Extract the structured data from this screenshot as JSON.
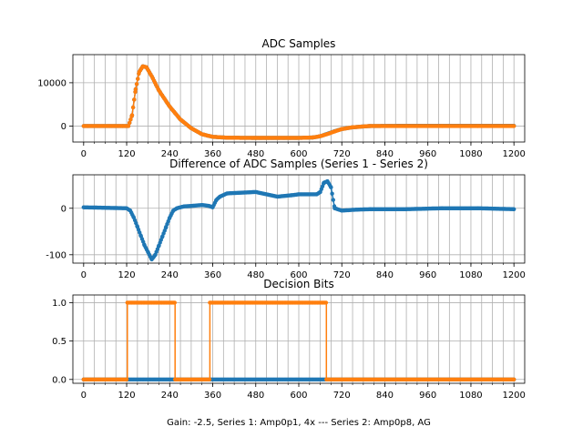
{
  "figure_xlabel": "Gain: -2.5, Series 1: Amp0p1, 4x --- Series 2: Amp0p8, AG",
  "colors": {
    "series1": "#1f77b4",
    "series2": "#ff7f0e",
    "grid": "#b0b0b0"
  },
  "chart_data": [
    {
      "type": "scatter",
      "title": "ADC Samples",
      "xlim": [
        -30,
        1230
      ],
      "ylim": [
        -3700,
        16500
      ],
      "xticks": [
        0,
        120,
        240,
        360,
        480,
        600,
        720,
        840,
        960,
        1080,
        1200
      ],
      "yticks": [
        0,
        10000
      ],
      "series": [
        {
          "name": "Series 1",
          "color": "#1f77b4",
          "connected": true,
          "points": [
            [
              0,
              0
            ],
            [
              110,
              0
            ],
            [
              125,
              0
            ],
            [
              135,
              2500
            ],
            [
              145,
              8500
            ],
            [
              155,
              12500
            ],
            [
              165,
              13800
            ],
            [
              175,
              13600
            ],
            [
              190,
              11500
            ],
            [
              210,
              8200
            ],
            [
              240,
              4500
            ],
            [
              270,
              1500
            ],
            [
              300,
              -500
            ],
            [
              330,
              -1900
            ],
            [
              360,
              -2500
            ],
            [
              400,
              -2700
            ],
            [
              480,
              -2750
            ],
            [
              600,
              -2750
            ],
            [
              640,
              -2650
            ],
            [
              660,
              -2350
            ],
            [
              680,
              -1800
            ],
            [
              700,
              -1200
            ],
            [
              720,
              -700
            ],
            [
              750,
              -300
            ],
            [
              780,
              -100
            ],
            [
              800,
              0
            ],
            [
              900,
              50
            ],
            [
              1000,
              50
            ],
            [
              1100,
              50
            ],
            [
              1200,
              50
            ]
          ]
        },
        {
          "name": "Series 2",
          "color": "#ff7f0e",
          "connected": true,
          "points": [
            [
              0,
              0
            ],
            [
              110,
              0
            ],
            [
              125,
              0
            ],
            [
              135,
              2500
            ],
            [
              145,
              8500
            ],
            [
              155,
              12500
            ],
            [
              165,
              13800
            ],
            [
              175,
              13600
            ],
            [
              190,
              11500
            ],
            [
              210,
              8200
            ],
            [
              240,
              4500
            ],
            [
              270,
              1500
            ],
            [
              300,
              -500
            ],
            [
              330,
              -1900
            ],
            [
              360,
              -2500
            ],
            [
              400,
              -2700
            ],
            [
              480,
              -2750
            ],
            [
              600,
              -2750
            ],
            [
              640,
              -2650
            ],
            [
              660,
              -2350
            ],
            [
              680,
              -1850
            ],
            [
              700,
              -1250
            ],
            [
              720,
              -700
            ],
            [
              750,
              -300
            ],
            [
              780,
              -100
            ],
            [
              800,
              0
            ],
            [
              900,
              0
            ],
            [
              1000,
              0
            ],
            [
              1100,
              0
            ],
            [
              1200,
              0
            ]
          ]
        }
      ]
    },
    {
      "type": "scatter",
      "title": "Difference of ADC Samples (Series 1 - Series 2)",
      "xlim": [
        -30,
        1230
      ],
      "ylim": [
        -118,
        72
      ],
      "xticks": [
        0,
        120,
        240,
        360,
        480,
        600,
        720,
        840,
        960,
        1080,
        1200
      ],
      "yticks": [
        -100,
        0
      ],
      "series": [
        {
          "name": "Series 1 - Series 2",
          "color": "#1f77b4",
          "connected": true,
          "points": [
            [
              0,
              2
            ],
            [
              120,
              0
            ],
            [
              130,
              -5
            ],
            [
              140,
              -20
            ],
            [
              150,
              -40
            ],
            [
              160,
              -60
            ],
            [
              170,
              -80
            ],
            [
              180,
              -95
            ],
            [
              190,
              -110
            ],
            [
              200,
              -100
            ],
            [
              210,
              -80
            ],
            [
              220,
              -60
            ],
            [
              230,
              -40
            ],
            [
              240,
              -20
            ],
            [
              250,
              -5
            ],
            [
              260,
              0
            ],
            [
              280,
              4
            ],
            [
              300,
              5
            ],
            [
              330,
              7
            ],
            [
              350,
              5
            ],
            [
              360,
              2
            ],
            [
              370,
              18
            ],
            [
              380,
              25
            ],
            [
              400,
              32
            ],
            [
              480,
              35
            ],
            [
              540,
              25
            ],
            [
              580,
              28
            ],
            [
              600,
              30
            ],
            [
              650,
              30
            ],
            [
              660,
              35
            ],
            [
              670,
              55
            ],
            [
              680,
              58
            ],
            [
              690,
              45
            ],
            [
              700,
              0
            ],
            [
              720,
              -5
            ],
            [
              760,
              -3
            ],
            [
              800,
              -2
            ],
            [
              900,
              -2
            ],
            [
              1000,
              0
            ],
            [
              1100,
              0
            ],
            [
              1200,
              -2
            ]
          ]
        }
      ]
    },
    {
      "type": "line",
      "title": "Decision Bits",
      "xlim": [
        -30,
        1230
      ],
      "ylim": [
        -0.05,
        1.1
      ],
      "xticks": [
        0,
        120,
        240,
        360,
        480,
        600,
        720,
        840,
        960,
        1080,
        1200
      ],
      "yticks": [
        0.0,
        0.5,
        1.0
      ],
      "series": [
        {
          "name": "Series 1",
          "color": "#1f77b4",
          "step": true,
          "points": [
            [
              0,
              0
            ],
            [
              1200,
              0
            ]
          ]
        },
        {
          "name": "Series 2",
          "color": "#ff7f0e",
          "step": true,
          "points": [
            [
              0,
              0
            ],
            [
              122,
              0
            ],
            [
              122,
              1
            ],
            [
              255,
              1
            ],
            [
              255,
              0
            ],
            [
              352,
              0
            ],
            [
              352,
              1
            ],
            [
              677,
              1
            ],
            [
              677,
              0
            ],
            [
              1200,
              0
            ]
          ]
        }
      ]
    }
  ]
}
